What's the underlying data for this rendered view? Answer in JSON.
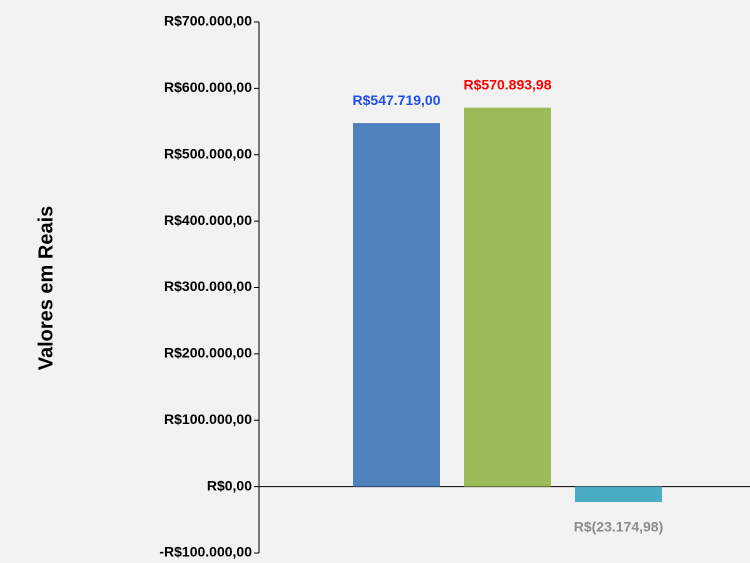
{
  "chart_data": {
    "type": "bar",
    "y_axis_label": "Valores em Reais",
    "categories": [
      null,
      null,
      null
    ],
    "values": [
      547719.0,
      570893.98,
      -23174.98
    ],
    "value_labels": [
      "R$547.719,00",
      "R$570.893,98",
      "R$(23.174,98)"
    ],
    "colors": [
      "#4f81bd",
      "#9bbb59",
      "#4bacc6"
    ],
    "label_colors": [
      "#1f4ee8",
      "#ff0000",
      "#8c8c8c"
    ],
    "ylim": [
      -100000,
      700000
    ],
    "yticks": [
      {
        "value": -100000,
        "label": "-R$100.000,00"
      },
      {
        "value": 0,
        "label": "R$0,00"
      },
      {
        "value": 100000,
        "label": "R$100.000,00"
      },
      {
        "value": 200000,
        "label": "R$200.000,00"
      },
      {
        "value": 300000,
        "label": "R$300.000,00"
      },
      {
        "value": 400000,
        "label": "R$400.000,00"
      },
      {
        "value": 500000,
        "label": "R$500.000,00"
      },
      {
        "value": 600000,
        "label": "R$600.000,00"
      },
      {
        "value": 700000,
        "label": "R$700.000,00"
      }
    ],
    "grid": false
  }
}
